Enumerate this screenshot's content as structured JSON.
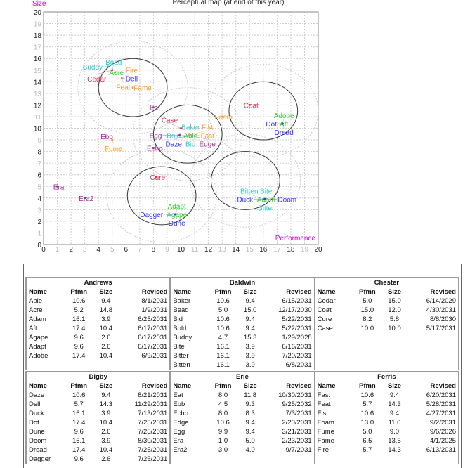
{
  "chart_data": {
    "type": "scatter",
    "title": "Perceptual map (at end of this year)",
    "xlabel": "Performance",
    "ylabel": "Size",
    "xlim": [
      0,
      20
    ],
    "ylim": [
      0,
      20
    ],
    "grid": true,
    "xticks": [
      0,
      1,
      2,
      3,
      4,
      5,
      6,
      7,
      8,
      9,
      10,
      11,
      12,
      13,
      14,
      15,
      16,
      17,
      18,
      19,
      20
    ],
    "yticks": [
      0,
      1,
      2,
      3,
      4,
      5,
      6,
      7,
      8,
      9,
      10,
      11,
      12,
      13,
      14,
      15,
      16,
      17,
      18,
      19,
      20
    ],
    "segment_circles": [
      {
        "center": [
          6.5,
          13.5
        ],
        "radius": 2.5
      },
      {
        "center": [
          10.5,
          9.5
        ],
        "radius": 2.5
      },
      {
        "center": [
          16,
          11.5
        ],
        "radius": 2.5
      },
      {
        "center": [
          14.7,
          5.5
        ],
        "radius": 2.5
      },
      {
        "center": [
          8.6,
          4.2
        ],
        "radius": 2.5
      }
    ],
    "outer_circle_radius": 4,
    "colors": {
      "Andrews": "#33cc33",
      "Baldwin": "#33cccc",
      "Chester": "#dd3355",
      "Digby": "#3333ff",
      "Erie": "#993399",
      "Ferris": "#ff9933"
    }
  },
  "companies": [
    {
      "name": "Andrews",
      "products": [
        [
          "Able",
          "10.6",
          "9.4",
          "8/1/2031"
        ],
        [
          "Acre",
          "5.2",
          "14.8",
          "1/9/2031"
        ],
        [
          "Adam",
          "16.1",
          "3.9",
          "6/25/2031"
        ],
        [
          "Aft",
          "17.4",
          "10.4",
          "6/17/2031"
        ],
        [
          "Agape",
          "9.6",
          "2.6",
          "6/17/2031"
        ],
        [
          "Adapt",
          "9.6",
          "2.6",
          "6/17/2031"
        ],
        [
          "Adobe",
          "17.4",
          "10.4",
          "6/9/2031"
        ]
      ]
    },
    {
      "name": "Baldwin",
      "products": [
        [
          "Baker",
          "10.6",
          "9.4",
          "6/15/2031"
        ],
        [
          "Bead",
          "5.0",
          "15.0",
          "12/17/2030"
        ],
        [
          "Bid",
          "10.6",
          "9.4",
          "5/22/2031"
        ],
        [
          "Bold",
          "10.6",
          "9.4",
          "5/22/2031"
        ],
        [
          "Buddy",
          "4.7",
          "15.3",
          "1/29/2028"
        ],
        [
          "Bite",
          "16.1",
          "3.9",
          "6/16/2031"
        ],
        [
          "Bitter",
          "16.1",
          "3.9",
          "7/20/2031"
        ],
        [
          "Bitten",
          "16.1",
          "3.9",
          "6/8/2031"
        ]
      ]
    },
    {
      "name": "Chester",
      "products": [
        [
          "Cedar",
          "5.0",
          "15.0",
          "6/14/2029"
        ],
        [
          "Coat",
          "15.0",
          "12.0",
          "4/30/2031"
        ],
        [
          "Cure",
          "8.2",
          "5.8",
          "8/8/2030"
        ],
        [
          "Case",
          "10.0",
          "10.0",
          "5/17/2031"
        ]
      ]
    },
    {
      "name": "Digby",
      "products": [
        [
          "Daze",
          "10.6",
          "9.4",
          "8/21/2031"
        ],
        [
          "Dell",
          "5.7",
          "14.3",
          "11/29/2031"
        ],
        [
          "Duck",
          "16.1",
          "3.9",
          "7/13/2031"
        ],
        [
          "Dot",
          "17.4",
          "10.4",
          "7/25/2031"
        ],
        [
          "Dune",
          "9.6",
          "2.6",
          "7/25/2031"
        ],
        [
          "Doom",
          "16.1",
          "3.9",
          "8/30/2031"
        ],
        [
          "Dread",
          "17.4",
          "10.4",
          "7/25/2031"
        ],
        [
          "Dagger",
          "9.6",
          "2.6",
          "7/25/2031"
        ]
      ]
    },
    {
      "name": "Erie",
      "products": [
        [
          "Eat",
          "8.0",
          "11.8",
          "10/30/2031"
        ],
        [
          "Ebb",
          "4.5",
          "9.3",
          "9/25/2032"
        ],
        [
          "Echo",
          "8.0",
          "8.3",
          "7/3/2031"
        ],
        [
          "Edge",
          "10.6",
          "9.4",
          "2/20/2031"
        ],
        [
          "Egg",
          "9.9",
          "9.4",
          "3/21/2031"
        ],
        [
          "Era",
          "1.0",
          "5.0",
          "2/23/2031"
        ],
        [
          "Era2",
          "3.0",
          "4.0",
          "9/7/2031"
        ]
      ]
    },
    {
      "name": "Ferris",
      "products": [
        [
          "Fast",
          "10.6",
          "9.4",
          "6/20/2031"
        ],
        [
          "Feat",
          "5.7",
          "14.3",
          "5/28/2031"
        ],
        [
          "Fist",
          "10.6",
          "9.4",
          "4/27/2031"
        ],
        [
          "Foam",
          "13.0",
          "11.0",
          "9/2/2031"
        ],
        [
          "Fume",
          "5.0",
          "9.0",
          "9/6/2026"
        ],
        [
          "Fame",
          "6.5",
          "13.5",
          "4/1/2025"
        ],
        [
          "Fire",
          "5.7",
          "14.3",
          "6/13/2031"
        ]
      ]
    }
  ],
  "columns": [
    "Name",
    "Pfmn",
    "Size",
    "Revised"
  ]
}
